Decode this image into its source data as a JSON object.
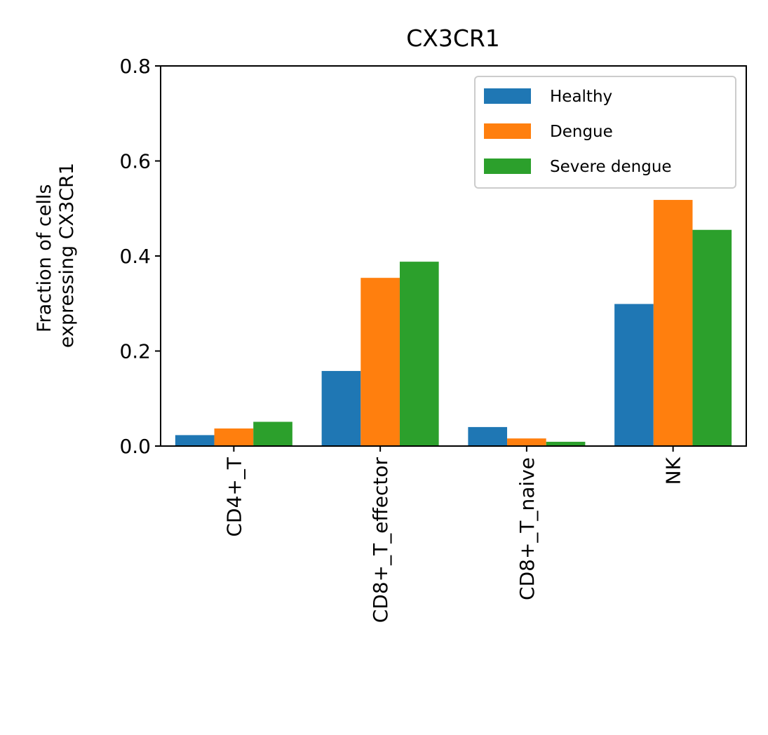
{
  "chart_data": {
    "type": "bar",
    "title": "CX3CR1",
    "xlabel": "",
    "ylabel_lines": [
      "Fraction of cells",
      "expressing CX3CR1"
    ],
    "categories": [
      "CD4+_T",
      "CD8+_T_effector",
      "CD8+_T_naive",
      "NK"
    ],
    "series": [
      {
        "name": "Healthy",
        "color": "#1f77b4",
        "values": [
          0.023,
          0.158,
          0.04,
          0.299
        ]
      },
      {
        "name": "Dengue",
        "color": "#ff7f0e",
        "values": [
          0.037,
          0.354,
          0.016,
          0.518
        ]
      },
      {
        "name": "Severe dengue",
        "color": "#2ca02c",
        "values": [
          0.051,
          0.388,
          0.009,
          0.455
        ]
      }
    ],
    "ylim": [
      0,
      0.8
    ],
    "yticks": [
      0,
      0.2,
      0.4,
      0.6,
      0.8
    ],
    "ytick_labels": [
      "0.0",
      "0.2",
      "0.4",
      "0.6",
      "0.8"
    ],
    "grid": false,
    "legend_position": "top-right"
  }
}
